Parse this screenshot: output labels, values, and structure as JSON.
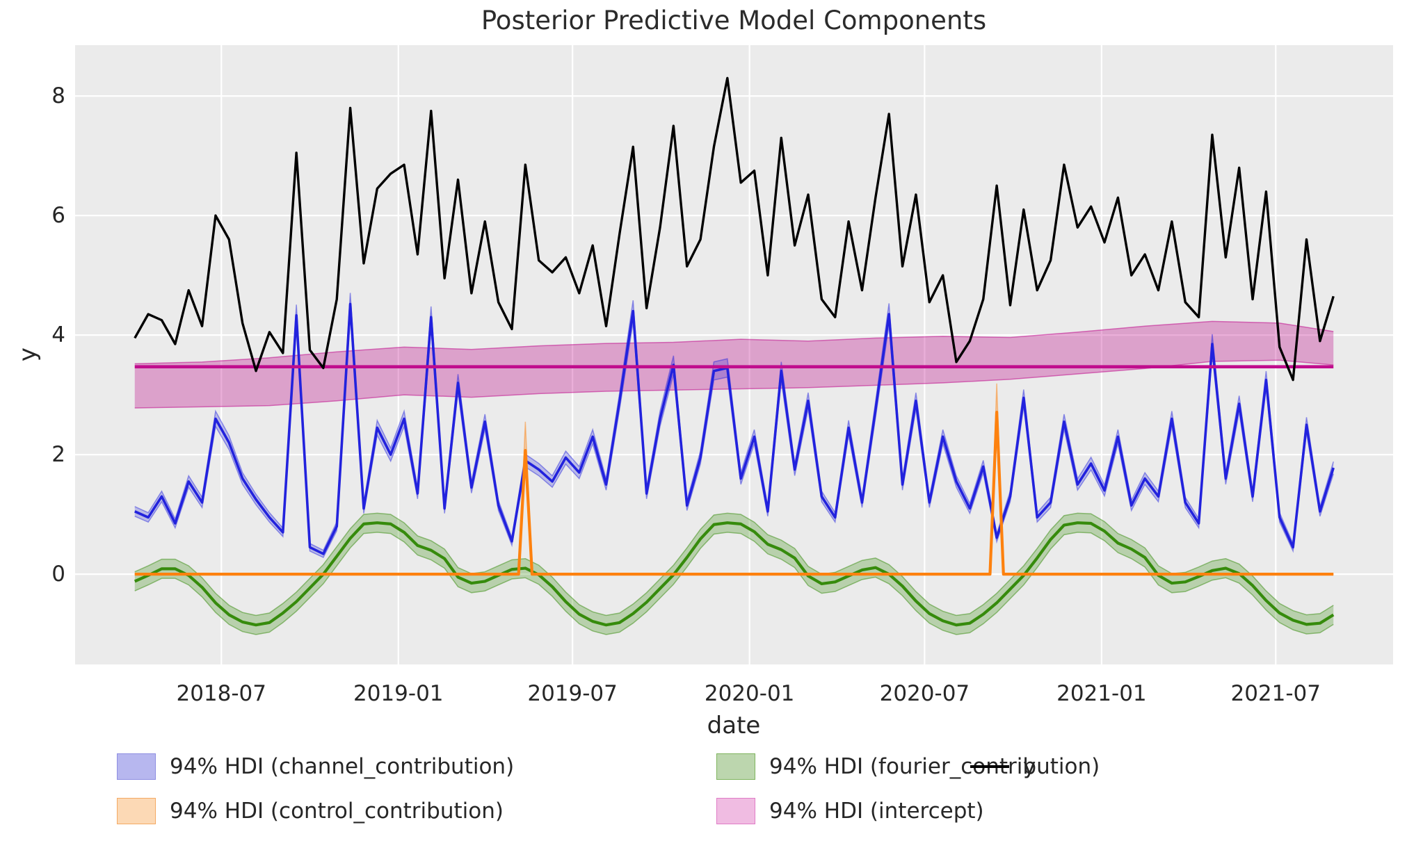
{
  "title": "Posterior Predictive Model Components",
  "axes": {
    "xlabel": "date",
    "ylabel": "y"
  },
  "colors": {
    "figure_bg": "#ffffff",
    "plot_bg": "#ebebeb",
    "grid": "#ffffff",
    "text": "#262626"
  },
  "legend": {
    "items": [
      {
        "label": "94% HDI (channel_contribution)",
        "fill": "#b7b7ef",
        "edge": "#8e8ee2"
      },
      {
        "label": "94% HDI (control_contribution)",
        "fill": "#fcd9b5",
        "edge": "#f4a963"
      },
      {
        "label": "94% HDI (fourier_contribution)",
        "fill": "#bcd6ae",
        "edge": "#7fb45e"
      },
      {
        "label": "94% HDI (intercept)",
        "fill": "#f0bce2",
        "edge": "#e07cc6"
      },
      {
        "label": "y",
        "line": "#000000"
      }
    ]
  },
  "chart_data": {
    "type": "line",
    "hdi_label": "94% HDI",
    "x_start_date": "2018-04-02",
    "x_step_days": 14,
    "n_points": 90,
    "x_axis": {
      "label": "date",
      "lim_days": [
        -62,
        1308
      ],
      "tick_days": [
        90,
        274,
        455,
        639,
        821,
        1005,
        1186
      ],
      "tick_labels": [
        "2018-07",
        "2019-01",
        "2019-07",
        "2020-01",
        "2020-07",
        "2021-01",
        "2021-07"
      ]
    },
    "y_axis": {
      "label": "y",
      "lim": [
        -1.51,
        8.85
      ],
      "ticks": [
        0,
        2,
        4,
        6,
        8
      ],
      "grid": true
    },
    "series": [
      {
        "name": "y",
        "kind": "line",
        "color": "#000000",
        "width": 3.4,
        "values": [
          3.95,
          4.35,
          4.25,
          3.85,
          4.75,
          4.15,
          6.0,
          5.6,
          4.2,
          3.4,
          4.05,
          3.7,
          7.05,
          3.75,
          3.45,
          4.6,
          7.8,
          5.2,
          6.45,
          6.7,
          6.85,
          5.35,
          7.75,
          4.95,
          6.6,
          4.7,
          5.9,
          4.55,
          4.1,
          6.85,
          5.25,
          5.05,
          5.3,
          4.7,
          5.5,
          4.15,
          5.7,
          7.15,
          4.45,
          5.8,
          7.5,
          5.15,
          5.6,
          7.15,
          8.3,
          6.55,
          6.75,
          5.0,
          7.3,
          5.5,
          6.35,
          4.6,
          4.3,
          5.9,
          4.75,
          6.3,
          7.7,
          5.15,
          6.35,
          4.55,
          5.0,
          3.55,
          3.9,
          4.6,
          6.5,
          4.5,
          6.1,
          4.75,
          5.25,
          6.85,
          5.8,
          6.15,
          5.55,
          6.3,
          5.0,
          5.35,
          4.75,
          5.9,
          4.55,
          4.3,
          7.35,
          5.3,
          6.8,
          4.6,
          6.4,
          3.8,
          3.25,
          5.6,
          3.9,
          4.65
        ]
      },
      {
        "name": "channel_contribution",
        "kind": "line+hdi",
        "color": "#2222dd",
        "width": 3.6,
        "band_opacity": 0.25,
        "edge_opacity": 0.45,
        "hdi_base": 0.05,
        "hdi_frac": 0.03,
        "values": [
          1.05,
          0.95,
          1.3,
          0.85,
          1.55,
          1.2,
          2.6,
          2.2,
          1.6,
          1.25,
          0.95,
          0.7,
          4.33,
          0.45,
          0.34,
          0.8,
          4.52,
          1.1,
          2.45,
          2.0,
          2.6,
          1.35,
          4.3,
          1.1,
          3.2,
          1.45,
          2.55,
          1.15,
          0.55,
          1.9,
          1.75,
          1.55,
          1.95,
          1.7,
          2.3,
          1.5,
          2.9,
          4.4,
          1.35,
          2.6,
          3.5,
          1.15,
          1.95,
          3.4,
          3.45,
          1.6,
          2.3,
          1.05,
          3.4,
          1.75,
          2.9,
          1.3,
          0.95,
          2.45,
          1.2,
          2.75,
          4.35,
          1.5,
          2.9,
          1.2,
          2.3,
          1.55,
          1.1,
          1.8,
          0.61,
          1.3,
          2.95,
          0.95,
          1.2,
          2.55,
          1.5,
          1.85,
          1.4,
          2.3,
          1.15,
          1.6,
          1.3,
          2.6,
          1.2,
          0.85,
          3.85,
          1.6,
          2.85,
          1.3,
          3.25,
          0.95,
          0.45,
          2.5,
          1.05,
          1.78
        ]
      },
      {
        "name": "fourier_contribution",
        "kind": "line+hdi",
        "color": "#368b0c",
        "width": 4.2,
        "band_opacity": 0.28,
        "edge_opacity": 0.5,
        "hdi_halfwidth": 0.16,
        "values": [
          -0.12,
          -0.02,
          0.09,
          0.09,
          -0.02,
          -0.22,
          -0.48,
          -0.68,
          -0.8,
          -0.85,
          -0.81,
          -0.65,
          -0.46,
          -0.23,
          0.0,
          0.3,
          0.6,
          0.84,
          0.86,
          0.84,
          0.7,
          0.48,
          0.4,
          0.26,
          -0.05,
          -0.15,
          -0.12,
          -0.02,
          0.08,
          0.1,
          -0.01,
          -0.21,
          -0.46,
          -0.67,
          -0.79,
          -0.85,
          -0.81,
          -0.66,
          -0.47,
          -0.24,
          -0.01,
          0.28,
          0.59,
          0.83,
          0.86,
          0.84,
          0.71,
          0.5,
          0.41,
          0.27,
          -0.03,
          -0.16,
          -0.13,
          -0.03,
          0.07,
          0.11,
          0.0,
          -0.2,
          -0.45,
          -0.66,
          -0.78,
          -0.85,
          -0.82,
          -0.67,
          -0.48,
          -0.25,
          -0.02,
          0.27,
          0.58,
          0.82,
          0.86,
          0.85,
          0.72,
          0.52,
          0.42,
          0.28,
          -0.02,
          -0.15,
          -0.13,
          -0.04,
          0.06,
          0.1,
          0.01,
          -0.19,
          -0.44,
          -0.65,
          -0.77,
          -0.84,
          -0.82,
          -0.68
        ]
      },
      {
        "name": "control_contribution",
        "kind": "sparse-line+hdi",
        "color": "#fd810e",
        "width": 4.2,
        "band_opacity": 0.3,
        "edge_opacity": 0.45,
        "x_days": [
          0,
          399,
          406,
          413,
          889,
          896,
          903,
          1246
        ],
        "values": [
          0,
          0,
          2.07,
          0,
          0,
          2.71,
          0,
          0
        ],
        "hdi_upper": [
          0,
          0,
          2.55,
          0,
          0,
          3.19,
          0,
          0
        ],
        "hdi_lower": [
          0,
          0,
          1.75,
          0,
          0,
          2.32,
          0,
          0
        ],
        "event_dates": [
          "2019-05-13",
          "2020-09-14"
        ]
      },
      {
        "name": "intercept",
        "kind": "hline+hdi",
        "color": "#c00d8d",
        "width": 4.6,
        "band_opacity": 0.33,
        "edge_opacity": 0.55,
        "value": 3.47,
        "hdi_x_days": [
          0,
          70,
          140,
          210,
          280,
          350,
          420,
          490,
          560,
          630,
          700,
          770,
          840,
          910,
          980,
          1050,
          1120,
          1190,
          1246
        ],
        "hdi_lower": [
          2.78,
          2.8,
          2.82,
          2.9,
          3.0,
          2.96,
          3.02,
          3.06,
          3.08,
          3.1,
          3.12,
          3.16,
          3.2,
          3.26,
          3.35,
          3.44,
          3.56,
          3.58,
          3.5
        ],
        "hdi_upper": [
          3.52,
          3.55,
          3.62,
          3.72,
          3.8,
          3.76,
          3.82,
          3.86,
          3.88,
          3.93,
          3.9,
          3.95,
          3.98,
          3.96,
          4.05,
          4.15,
          4.23,
          4.2,
          4.06
        ]
      }
    ]
  }
}
